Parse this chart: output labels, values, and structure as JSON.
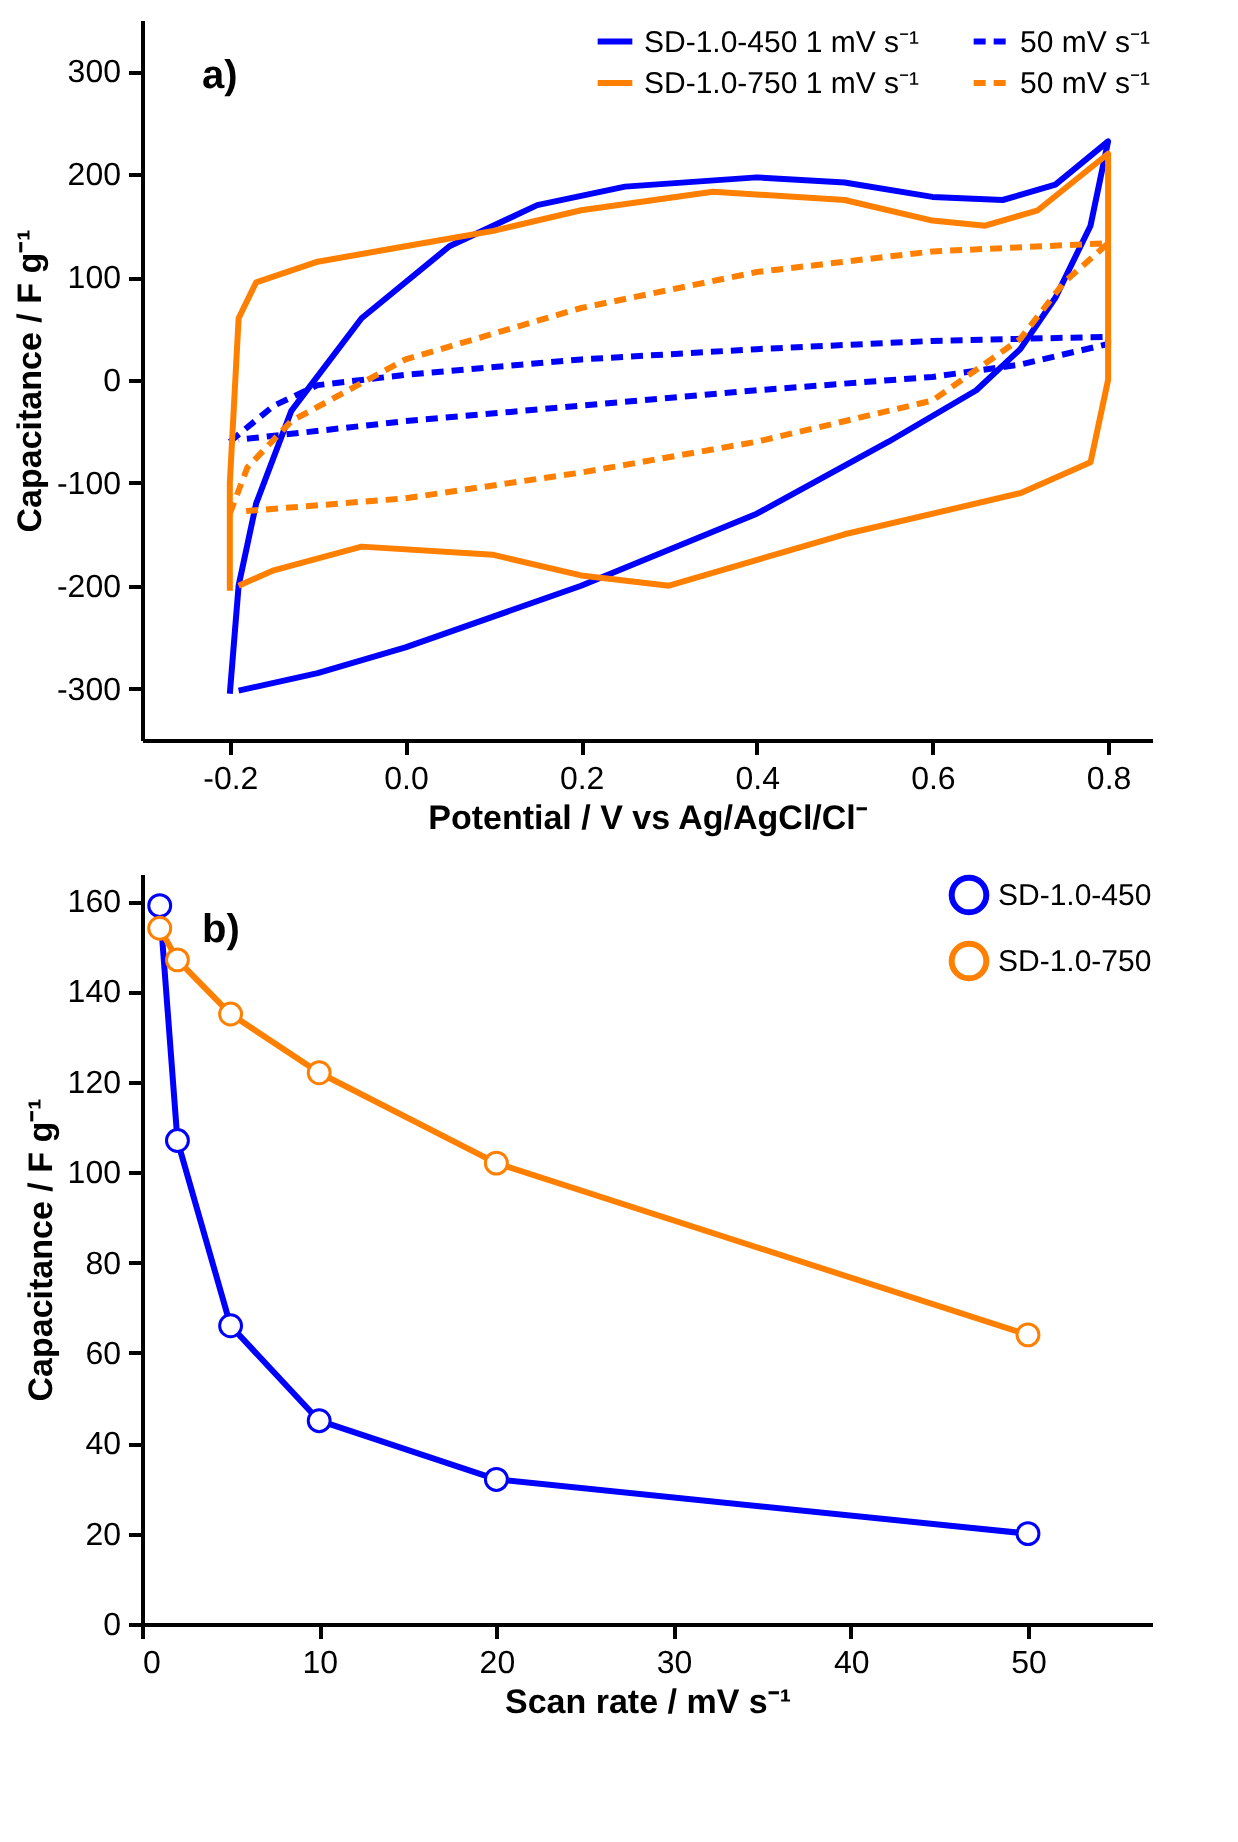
{
  "chart_data": [
    {
      "type": "line",
      "xlabel": "Potential / V vs Ag/AgCl/Cl⁻",
      "ylabel": "Capacitance / F g⁻¹",
      "annotations": [
        "a)"
      ],
      "xlim": [
        -0.3,
        0.85
      ],
      "ylim": [
        -350,
        350
      ],
      "xticks": [
        -0.2,
        {
          "value": 0,
          "label": "0.0"
        },
        0.2,
        0.4,
        0.6,
        0.8
      ],
      "yticks": [
        -300,
        -200,
        -100,
        0,
        100,
        200,
        300
      ],
      "legend": "top right",
      "series": [
        {
          "name": "SD-1.0-450 1 mV s⁻¹",
          "color": "#0000ff",
          "line_style": "solid",
          "x": [
            -0.2,
            -0.19,
            -0.17,
            -0.13,
            -0.05,
            0.05,
            0.15,
            0.25,
            0.4,
            0.5,
            0.6,
            0.68,
            0.74,
            0.8,
            0.78,
            0.74,
            0.7,
            0.65,
            0.55,
            0.4,
            0.2,
            0.0,
            -0.1,
            -0.19
          ],
          "values": [
            -305,
            -200,
            -120,
            -30,
            60,
            130,
            170,
            188,
            197,
            192,
            178,
            175,
            190,
            232,
            150,
            80,
            30,
            -10,
            -60,
            -130,
            -200,
            -260,
            -285,
            -302
          ]
        },
        {
          "name": "50 mV s⁻¹",
          "color": "#0000ff",
          "line_style": "dashed",
          "x": [
            -0.2,
            -0.15,
            -0.1,
            0.0,
            0.2,
            0.4,
            0.6,
            0.8,
            0.8,
            0.7,
            0.6,
            0.4,
            0.2,
            0.0,
            -0.19
          ],
          "values": [
            -60,
            -25,
            -5,
            5,
            20,
            30,
            38,
            42,
            35,
            15,
            3,
            -10,
            -25,
            -40,
            -58
          ]
        },
        {
          "name": "SD-1.0-750 1 mV s⁻¹",
          "color": "#ff8000",
          "line_style": "solid",
          "x": [
            -0.2,
            -0.2,
            -0.19,
            -0.17,
            -0.1,
            0.0,
            0.1,
            0.2,
            0.35,
            0.5,
            0.6,
            0.66,
            0.72,
            0.8,
            0.8,
            0.8,
            0.78,
            0.7,
            0.5,
            0.3,
            0.2,
            0.1,
            -0.05,
            -0.15,
            -0.19
          ],
          "values": [
            -205,
            -100,
            60,
            95,
            115,
            130,
            145,
            165,
            183,
            175,
            155,
            150,
            165,
            220,
            150,
            0,
            -80,
            -110,
            -150,
            -200,
            -190,
            -170,
            -162,
            -185,
            -200
          ]
        },
        {
          "name": "50 mV s⁻¹",
          "color": "#ff8000",
          "line_style": "dashed",
          "x": [
            -0.2,
            -0.18,
            -0.13,
            0.0,
            0.2,
            0.4,
            0.6,
            0.8,
            0.75,
            0.7,
            0.6,
            0.4,
            0.2,
            0.0,
            -0.19
          ],
          "values": [
            -130,
            -85,
            -40,
            20,
            70,
            105,
            125,
            133,
            95,
            40,
            -20,
            -60,
            -90,
            -115,
            -128
          ]
        }
      ]
    },
    {
      "type": "line",
      "xlabel": "Scan rate / mV s⁻¹",
      "ylabel": "Capacitance / F g⁻¹",
      "annotations": [
        "b)"
      ],
      "xlim": [
        0,
        57
      ],
      "ylim": [
        0,
        166
      ],
      "xticks": [
        0,
        10,
        20,
        30,
        40,
        50
      ],
      "yticks": [
        0,
        20,
        40,
        60,
        80,
        100,
        120,
        140,
        160
      ],
      "legend": "top right",
      "marker": "circle",
      "x": [
        1,
        2,
        5,
        10,
        20,
        50
      ],
      "series": [
        {
          "name": "SD-1.0-450",
          "color": "#0000ff",
          "values": [
            159,
            107,
            66,
            45,
            32,
            20
          ]
        },
        {
          "name": "SD-1.0-750",
          "color": "#ff8000",
          "values": [
            154,
            147,
            135,
            122,
            102,
            64
          ]
        }
      ]
    }
  ]
}
